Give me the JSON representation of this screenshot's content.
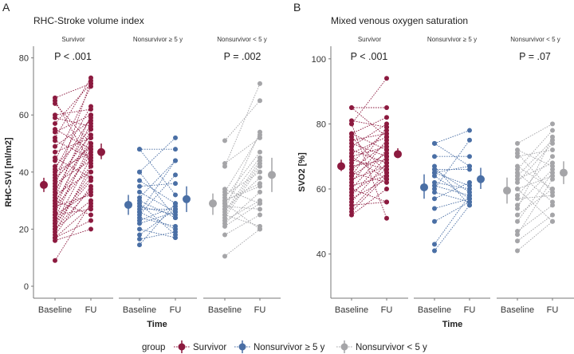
{
  "colors": {
    "Survivor": "#8c1a3f",
    "Nonsurvivor ≥ 5 y": "#4a6fa5",
    "Nonsurvivor < 5 y": "#a5a5a8",
    "axis": "#777777"
  },
  "legend": {
    "title": "group",
    "entries": [
      "Survivor",
      "Nonsurvivor ≥ 5 y",
      "Nonsurvivor < 5 y"
    ]
  },
  "chart_data": [
    {
      "type": "scatter",
      "panel": "A",
      "title": "RHC-Stroke volume index",
      "ylabel": "RHC-SVi [ml/m2]",
      "xlabel": "Time",
      "ylim": [
        -4,
        84
      ],
      "yticks": [
        0,
        20,
        40,
        60,
        80
      ],
      "categories": [
        "Baseline",
        "FU"
      ],
      "facets": [
        {
          "name": "Survivor",
          "p_value": "P < .001",
          "summary": {
            "Baseline": {
              "mean": 35.5,
              "ci": [
                33,
                38
              ]
            },
            "FU": {
              "mean": 47,
              "ci": [
                44.5,
                50
              ]
            }
          },
          "pairs": [
            [
              9,
              29
            ],
            [
              16,
              20
            ],
            [
              17,
              23
            ],
            [
              17,
              28
            ],
            [
              18,
              35
            ],
            [
              19,
              42
            ],
            [
              20,
              30
            ],
            [
              21,
              40
            ],
            [
              22,
              45
            ],
            [
              23,
              38
            ],
            [
              24,
              50
            ],
            [
              25,
              33
            ],
            [
              26,
              48
            ],
            [
              27,
              55
            ],
            [
              28,
              42
            ],
            [
              29,
              52
            ],
            [
              30,
              46
            ],
            [
              31,
              60
            ],
            [
              32,
              40
            ],
            [
              33,
              57
            ],
            [
              34,
              50
            ],
            [
              35,
              72
            ],
            [
              36,
              44
            ],
            [
              37,
              53
            ],
            [
              38,
              49
            ],
            [
              39,
              59
            ],
            [
              40,
              47
            ],
            [
              41,
              63
            ],
            [
              42,
              55
            ],
            [
              44,
              70
            ],
            [
              45,
              38
            ],
            [
              47,
              52
            ],
            [
              49,
              58
            ],
            [
              51,
              45
            ],
            [
              52,
              73
            ],
            [
              54,
              60
            ],
            [
              55,
              48
            ],
            [
              57,
              71
            ],
            [
              59,
              56
            ],
            [
              60,
              62
            ],
            [
              64,
              50
            ],
            [
              66,
              71
            ],
            [
              65,
              43
            ],
            [
              30,
              25
            ],
            [
              28,
              32
            ],
            [
              25,
              27
            ],
            [
              22,
              37
            ],
            [
              20,
              34
            ]
          ]
        },
        {
          "name": "Nonsurvivor ≥ 5 y",
          "p_value": "",
          "summary": {
            "Baseline": {
              "mean": 28.5,
              "ci": [
                25,
                32
              ]
            },
            "FU": {
              "mean": 30.5,
              "ci": [
                26,
                35
              ]
            }
          },
          "pairs": [
            [
              14.5,
              29
            ],
            [
              16.5,
              19
            ],
            [
              18,
              27
            ],
            [
              20,
              17
            ],
            [
              22,
              26
            ],
            [
              23,
              28
            ],
            [
              24,
              21
            ],
            [
              25,
              39
            ],
            [
              26,
              20
            ],
            [
              27,
              27
            ],
            [
              28,
              25
            ],
            [
              29,
              18
            ],
            [
              30,
              24
            ],
            [
              31,
              44
            ],
            [
              33,
              26
            ],
            [
              35,
              36
            ],
            [
              37,
              29
            ],
            [
              40,
              52
            ],
            [
              40,
              24
            ],
            [
              48,
              48
            ],
            [
              48,
              32
            ],
            [
              26,
              44
            ]
          ]
        },
        {
          "name": "Nonsurvivor < 5 y",
          "p_value": "P = .002",
          "summary": {
            "Baseline": {
              "mean": 29,
              "ci": [
                25,
                32.5
              ]
            },
            "FU": {
              "mean": 39,
              "ci": [
                33,
                45
              ]
            }
          },
          "pairs": [
            [
              10.5,
              20
            ],
            [
              18,
              25
            ],
            [
              21,
              29
            ],
            [
              22,
              33
            ],
            [
              23,
              30
            ],
            [
              24,
              42
            ],
            [
              25,
              21
            ],
            [
              26,
              44
            ],
            [
              27,
              38
            ],
            [
              28,
              27
            ],
            [
              29,
              45
            ],
            [
              30,
              35
            ],
            [
              31,
              47
            ],
            [
              32,
              40
            ],
            [
              33,
              53
            ],
            [
              34,
              29
            ],
            [
              42,
              71
            ],
            [
              43,
              52
            ],
            [
              51,
              65
            ],
            [
              27,
              54
            ],
            [
              25,
              43
            ],
            [
              29,
              20
            ],
            [
              30,
              36
            ]
          ]
        }
      ]
    },
    {
      "type": "scatter",
      "panel": "B",
      "title": "Mixed venous oxygen saturation",
      "ylabel": "SVO2 [%]",
      "xlabel": "Time",
      "ylim": [
        26.4,
        104
      ],
      "yticks": [
        40,
        60,
        80,
        100
      ],
      "categories": [
        "Baseline",
        "FU"
      ],
      "facets": [
        {
          "name": "Survivor",
          "p_value": "P < .001",
          "summary": {
            "Baseline": {
              "mean": 67,
              "ci": [
                65.5,
                69
              ]
            },
            "FU": {
              "mean": 70.7,
              "ci": [
                69.5,
                72.5
              ]
            }
          },
          "pairs": [
            [
              52,
              60
            ],
            [
              54,
              65
            ],
            [
              55,
              56
            ],
            [
              56,
              68
            ],
            [
              57,
              63
            ],
            [
              58,
              70
            ],
            [
              59,
              66
            ],
            [
              60,
              72
            ],
            [
              61,
              64
            ],
            [
              62,
              75
            ],
            [
              63,
              67
            ],
            [
              64,
              71
            ],
            [
              65,
              62
            ],
            [
              66,
              74
            ],
            [
              67,
              69
            ],
            [
              68,
              78
            ],
            [
              69,
              66
            ],
            [
              70,
              73
            ],
            [
              71,
              76
            ],
            [
              72,
              68
            ],
            [
              73,
              80
            ],
            [
              74,
              70
            ],
            [
              75,
              77
            ],
            [
              76,
              65
            ],
            [
              77,
              72
            ],
            [
              80,
              51
            ],
            [
              81,
              79
            ],
            [
              85,
              85
            ],
            [
              80,
              94
            ],
            [
              85,
              76
            ],
            [
              77,
              82
            ],
            [
              53,
              64
            ],
            [
              60,
              56
            ],
            [
              64,
              79
            ],
            [
              70,
              63
            ]
          ]
        },
        {
          "name": "Nonsurvivor ≥ 5 y",
          "p_value": "",
          "summary": {
            "Baseline": {
              "mean": 60.5,
              "ci": [
                57,
                64.5
              ]
            },
            "FU": {
              "mean": 63,
              "ci": [
                60,
                66.5
              ]
            }
          },
          "pairs": [
            [
              41,
              55
            ],
            [
              43,
              58
            ],
            [
              50,
              56
            ],
            [
              54,
              57
            ],
            [
              57,
              62
            ],
            [
              59,
              56
            ],
            [
              60,
              75
            ],
            [
              61,
              58
            ],
            [
              62,
              60
            ],
            [
              64,
              57
            ],
            [
              65,
              67
            ],
            [
              66,
              59
            ],
            [
              66,
              66
            ],
            [
              67,
              55
            ],
            [
              70,
              70
            ],
            [
              74,
              78
            ],
            [
              74,
              67
            ],
            [
              65,
              61
            ]
          ]
        },
        {
          "name": "Nonsurvivor < 5 y",
          "p_value": "P = .07",
          "summary": {
            "Baseline": {
              "mean": 59.5,
              "ci": [
                55.5,
                63.5
              ]
            },
            "FU": {
              "mean": 65,
              "ci": [
                61.5,
                68.5
              ]
            }
          },
          "pairs": [
            [
              41,
              50
            ],
            [
              44,
              52
            ],
            [
              46,
              63
            ],
            [
              47,
              55
            ],
            [
              50,
              65
            ],
            [
              52,
              60
            ],
            [
              54,
              76
            ],
            [
              55,
              66
            ],
            [
              57,
              58
            ],
            [
              58,
              70
            ],
            [
              60,
              64
            ],
            [
              62,
              74
            ],
            [
              63,
              68
            ],
            [
              65,
              56
            ],
            [
              66,
              78
            ],
            [
              67,
              60
            ],
            [
              70,
              72
            ],
            [
              71,
              59
            ],
            [
              72,
              67
            ],
            [
              74,
              80
            ],
            [
              60,
              50
            ],
            [
              64,
              75
            ]
          ]
        }
      ]
    }
  ]
}
